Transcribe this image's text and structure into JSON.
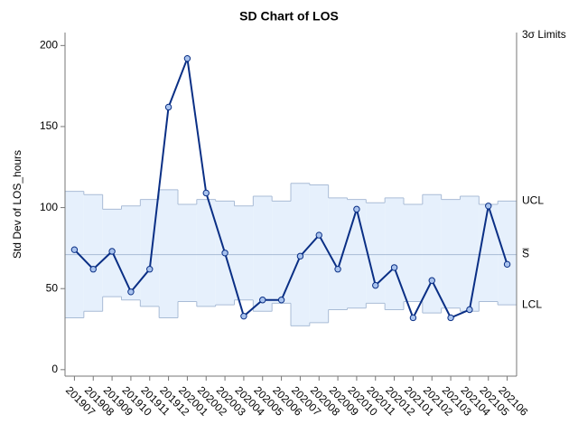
{
  "chart_data": {
    "type": "line",
    "title": "SD Chart of LOS",
    "y_label": "Std Dev of LOS_hours",
    "categories": [
      "201907",
      "201908",
      "201909",
      "201910",
      "201911",
      "201912",
      "202001",
      "202002",
      "202003",
      "202004",
      "202005",
      "202006",
      "202007",
      "202008",
      "202009",
      "202010",
      "202011",
      "202012",
      "202101",
      "202102",
      "202103",
      "202104",
      "202105",
      "202106"
    ],
    "values": [
      74,
      62,
      73,
      48,
      62,
      162,
      192,
      109,
      72,
      33,
      43,
      43,
      70,
      83,
      62,
      99,
      52,
      63,
      32,
      55,
      32,
      37,
      101,
      65
    ],
    "color": "#0a2f85",
    "marker_color": "#a9c3ee",
    "ucl": [
      110,
      108,
      99,
      101,
      105,
      111,
      102,
      105,
      104,
      101,
      107,
      104,
      115,
      114,
      106,
      105,
      103,
      106,
      102,
      108,
      105,
      107,
      102,
      104
    ],
    "lcl": [
      32,
      36,
      45,
      43,
      39,
      32,
      42,
      39,
      40,
      43,
      36,
      41,
      27,
      29,
      37,
      38,
      41,
      37,
      42,
      35,
      38,
      36,
      42,
      40
    ],
    "center": 71,
    "band_color": "#e6f0fc",
    "limit_color": "#a9bcd6",
    "limits_title": "3σ Limits",
    "ucl_label": "UCL",
    "center_label": "S̅",
    "lcl_label": "LCL",
    "ylim": [
      -4,
      208
    ],
    "yticks": [
      0,
      50,
      100,
      150,
      200
    ]
  }
}
